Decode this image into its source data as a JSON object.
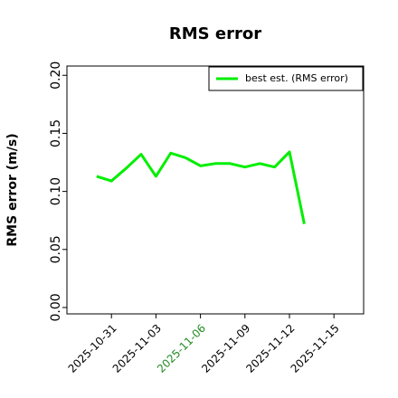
{
  "chart_data": {
    "type": "line",
    "title": "RMS error",
    "y_label": "RMS error (m/s)",
    "x": [
      "2025-10-30",
      "2025-10-31",
      "2025-11-01",
      "2025-11-02",
      "2025-11-03",
      "2025-11-04",
      "2025-11-05",
      "2025-11-06",
      "2025-11-07",
      "2025-11-08",
      "2025-11-09",
      "2025-11-10",
      "2025-11-11",
      "2025-11-12",
      "2025-11-13"
    ],
    "series": [
      {
        "name": "best est. (RMS error)",
        "color": "#00ee00",
        "values": [
          0.113,
          0.109,
          0.12,
          0.132,
          0.113,
          0.133,
          0.129,
          0.122,
          0.124,
          0.124,
          0.121,
          0.124,
          0.121,
          0.134,
          0.072
        ]
      }
    ],
    "xlim": [
      "2025-10-28",
      "2025-11-17"
    ],
    "xticks": [
      "2025-10-31",
      "2025-11-03",
      "2025-11-06",
      "2025-11-09",
      "2025-11-12",
      "2025-11-15"
    ],
    "xtick_label_colors": [
      "#000000",
      "#000000",
      "#228b22",
      "#000000",
      "#000000",
      "#000000"
    ],
    "ylim": [
      -0.0055,
      0.208
    ],
    "yticks": [
      {
        "value": 0,
        "label": "0.00"
      },
      {
        "value": 0.05,
        "label": "0.05"
      },
      {
        "value": 0.1,
        "label": "0.10"
      },
      {
        "value": 0.15,
        "label": "0.15"
      },
      {
        "value": 0.2,
        "label": "0.20"
      }
    ],
    "legend": "upper right"
  }
}
